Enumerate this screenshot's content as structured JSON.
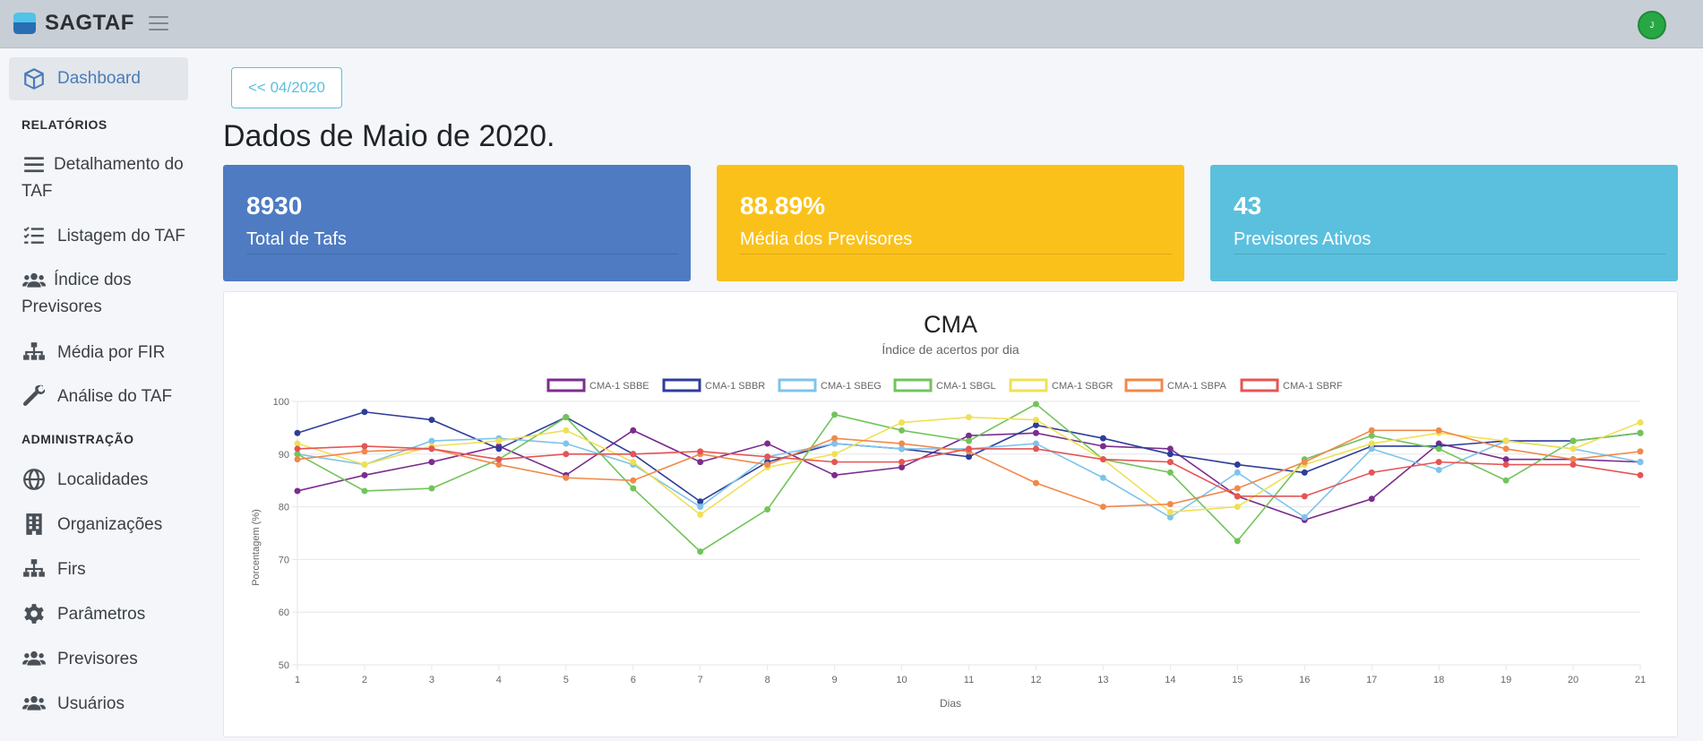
{
  "app": {
    "brand": "SAGTAF",
    "avatar_initial": "J"
  },
  "sidebar": {
    "dashboard": {
      "label": "Dashboard",
      "icon": "cube-icon"
    },
    "sections": [
      {
        "title": "RELATÓRIOS",
        "items": [
          {
            "label": "Detalhamento do TAF",
            "icon": "list-lines-icon"
          },
          {
            "label": "Listagem do TAF",
            "icon": "list-check-icon"
          },
          {
            "label": "Índice dos Previsores",
            "icon": "users-icon"
          },
          {
            "label": "Média por FIR",
            "icon": "sitemap-icon"
          },
          {
            "label": "Análise do TAF",
            "icon": "wrench-icon"
          }
        ]
      },
      {
        "title": "ADMINISTRAÇÃO",
        "items": [
          {
            "label": "Localidades",
            "icon": "globe-icon"
          },
          {
            "label": "Organizações",
            "icon": "building-icon"
          },
          {
            "label": "Firs",
            "icon": "sitemap-icon"
          },
          {
            "label": "Parâmetros",
            "icon": "gear-icon"
          },
          {
            "label": "Previsores",
            "icon": "users-icon"
          },
          {
            "label": "Usuários",
            "icon": "users-icon"
          }
        ]
      }
    ]
  },
  "main": {
    "prev_button": "<< 04/2020",
    "title": "Dados de Maio de 2020.",
    "cards": [
      {
        "value": "8930",
        "label": "Total de Tafs",
        "color": "#4e7bc2"
      },
      {
        "value": "88.89%",
        "label": "Média dos Previsores",
        "color": "#fbc11b"
      },
      {
        "value": "43",
        "label": "Previsores Ativos",
        "color": "#5bc0de"
      }
    ]
  },
  "chart_data": {
    "type": "line",
    "title": "CMA",
    "subtitle": "Índice de acertos por dia",
    "xlabel": "Dias",
    "ylabel": "Porcentagem (%)",
    "ylim": [
      50,
      100
    ],
    "yticks": [
      50,
      60,
      70,
      80,
      90,
      100
    ],
    "grid": true,
    "legend": "top",
    "x": [
      1,
      2,
      3,
      4,
      5,
      6,
      7,
      8,
      9,
      10,
      11,
      12,
      13,
      14,
      15,
      16,
      17,
      18,
      19,
      20,
      21
    ],
    "series": [
      {
        "name": "CMA-1 SBBE",
        "color": "#7b2d8e",
        "values": [
          83,
          86,
          88.5,
          91.5,
          86,
          94.5,
          88.5,
          92,
          86,
          87.5,
          93.5,
          94,
          91.5,
          91,
          82,
          77.5,
          81.5,
          92,
          89,
          89,
          88.5
        ]
      },
      {
        "name": "CMA-1 SBBR",
        "color": "#2e3d9a",
        "values": [
          94,
          98,
          96.5,
          91,
          97,
          90,
          81,
          88.5,
          92,
          91,
          89.5,
          95.5,
          93,
          90,
          88,
          86.5,
          91.5,
          91.5,
          92.5,
          92.5,
          94
        ]
      },
      {
        "name": "CMA-1 SBEG",
        "color": "#7ec4ea",
        "values": [
          90,
          88,
          92.5,
          93,
          92,
          88,
          80,
          89.5,
          92,
          91,
          91,
          92,
          85.5,
          78,
          86.5,
          78,
          91,
          87,
          92.5,
          91,
          88.5
        ]
      },
      {
        "name": "CMA-1 SBGL",
        "color": "#72c45a",
        "values": [
          90,
          83,
          83.5,
          89,
          97,
          83.5,
          71.5,
          79.5,
          97.5,
          94.5,
          92.5,
          99.5,
          89,
          86.5,
          73.5,
          89,
          93.5,
          91,
          85,
          92.5,
          94
        ]
      },
      {
        "name": "CMA-1 SBGR",
        "color": "#f0e056",
        "values": [
          92,
          88,
          91.5,
          92.5,
          94.5,
          88.5,
          78.5,
          87.5,
          90,
          96,
          97,
          96.5,
          89,
          79,
          80,
          88,
          92,
          94,
          92.5,
          91,
          96
        ]
      },
      {
        "name": "CMA-1 SBPA",
        "color": "#f0894a",
        "values": [
          89,
          90.5,
          91,
          88,
          85.5,
          85,
          90,
          88,
          93,
          92,
          90.5,
          84.5,
          80,
          80.5,
          83.5,
          88.5,
          94.5,
          94.5,
          91,
          89,
          90.5
        ]
      },
      {
        "name": "CMA-1 SBRF",
        "color": "#e65454",
        "values": [
          91,
          91.5,
          91,
          89,
          90,
          90,
          90.5,
          89.5,
          88.5,
          88.5,
          91,
          91,
          89,
          88.5,
          82,
          82,
          86.5,
          88.5,
          88,
          88,
          86
        ]
      }
    ]
  }
}
